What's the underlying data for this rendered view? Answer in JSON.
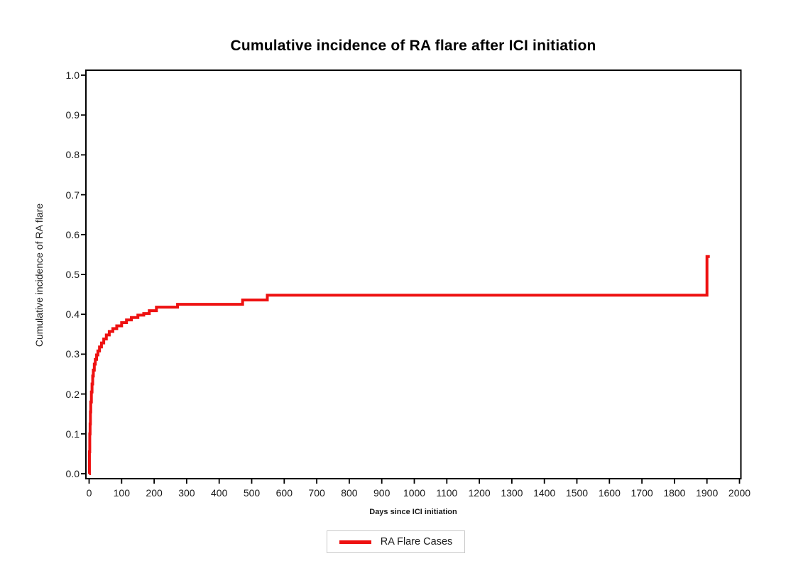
{
  "chart_data": {
    "type": "line",
    "subtype": "step-function-cumulative-incidence",
    "title": "Cumulative incidence of RA flare after ICI initiation",
    "xlabel": "Days since ICI initiation",
    "ylabel": "Cumulative incidence of RA flare",
    "xlim": [
      0,
      2000
    ],
    "ylim": [
      0.0,
      1.0
    ],
    "x_tick_step": 100,
    "y_tick_step": 0.1,
    "grid": false,
    "frame": true,
    "legend_position": "bottom-center",
    "colors": {
      "line": "#ee1111",
      "axis": "#000000",
      "legend_border": "#c9c9c9",
      "background": "#ffffff"
    },
    "series": [
      {
        "name": "RA Flare Cases",
        "color": "#ee1111",
        "step_points": [
          [
            0,
            0.0
          ],
          [
            1,
            0.055
          ],
          [
            2,
            0.1
          ],
          [
            3,
            0.125
          ],
          [
            4,
            0.155
          ],
          [
            5,
            0.18
          ],
          [
            7,
            0.205
          ],
          [
            9,
            0.225
          ],
          [
            11,
            0.245
          ],
          [
            13,
            0.26
          ],
          [
            16,
            0.275
          ],
          [
            19,
            0.287
          ],
          [
            23,
            0.298
          ],
          [
            27,
            0.308
          ],
          [
            32,
            0.318
          ],
          [
            38,
            0.328
          ],
          [
            45,
            0.338
          ],
          [
            53,
            0.348
          ],
          [
            62,
            0.357
          ],
          [
            73,
            0.364
          ],
          [
            85,
            0.371
          ],
          [
            100,
            0.379
          ],
          [
            115,
            0.386
          ],
          [
            130,
            0.392
          ],
          [
            150,
            0.398
          ],
          [
            168,
            0.402
          ],
          [
            185,
            0.409
          ],
          [
            207,
            0.418
          ],
          [
            272,
            0.425
          ],
          [
            472,
            0.436
          ],
          [
            548,
            0.448
          ],
          [
            1900,
            0.545
          ]
        ]
      }
    ]
  }
}
